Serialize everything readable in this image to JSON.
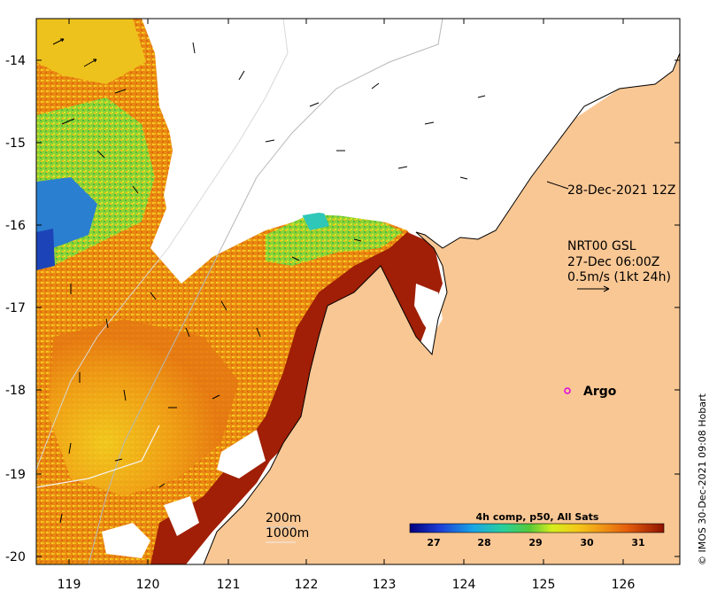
{
  "map": {
    "timestamp": "28-Dec-2021 12Z",
    "current_source": "NRT00 GSL",
    "current_time": "27-Dec 06:00Z",
    "arrow_scale": "0.5m/s (1kt 24h)",
    "argo_label": "Argo",
    "depth_200": "200m",
    "depth_1000": "1000m",
    "colorbar_title": "4h comp, p50, All Sats",
    "colorbar_ticks": [
      "27",
      "28",
      "29",
      "30",
      "31"
    ],
    "credit": "© IMOS 30-Dec-2021 09:08 Hobart",
    "lat_ticks": [
      "-14",
      "-15",
      "-16",
      "-17",
      "-18",
      "-19",
      "-20"
    ],
    "lon_ticks": [
      "119",
      "120",
      "121",
      "122",
      "123",
      "124",
      "125",
      "126"
    ],
    "colors": {
      "land": "#f9c794",
      "sst_warm": "#9b1c05",
      "sst_orange": "#e97b10",
      "sst_yellow": "#f2d316",
      "sst_green": "#4fc33a",
      "sst_blue": "#1d5bbf"
    }
  }
}
